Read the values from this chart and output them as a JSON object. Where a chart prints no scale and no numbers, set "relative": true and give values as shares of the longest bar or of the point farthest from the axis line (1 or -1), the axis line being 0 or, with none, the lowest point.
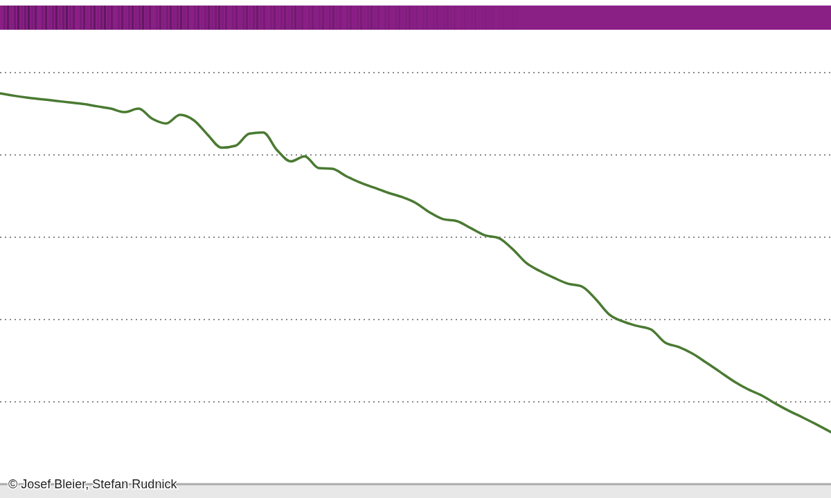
{
  "chart_data": {
    "type": "line",
    "relative": true,
    "grid": "y",
    "categories": [
      null,
      null,
      null,
      null,
      null,
      null,
      null,
      null,
      null,
      null,
      null,
      null,
      null,
      null,
      null,
      null,
      null,
      null,
      null,
      null,
      null,
      null,
      null,
      null,
      null,
      null,
      null,
      null,
      null,
      null,
      null,
      null,
      null,
      null,
      null,
      null,
      null,
      null,
      null,
      null,
      null,
      null,
      null,
      null,
      null,
      null,
      null,
      null,
      null,
      null,
      null,
      null,
      null,
      null,
      null,
      null,
      null,
      null,
      null,
      null,
      null
    ],
    "series": [
      {
        "color": "#4a7a32",
        "values": [
          1.0,
          0.994,
          0.989,
          0.985,
          0.981,
          0.977,
          0.973,
          0.967,
          0.961,
          0.952,
          0.961,
          0.935,
          0.923,
          0.945,
          0.931,
          0.894,
          0.861,
          0.866,
          0.897,
          0.9,
          0.855,
          0.826,
          0.839,
          0.809,
          0.807,
          0.788,
          0.772,
          0.759,
          0.746,
          0.735,
          0.72,
          0.696,
          0.678,
          0.673,
          0.655,
          0.637,
          0.63,
          0.602,
          0.566,
          0.545,
          0.528,
          0.513,
          0.506,
          0.474,
          0.434,
          0.416,
          0.405,
          0.396,
          0.363,
          0.351,
          0.334,
          0.311,
          0.287,
          0.263,
          0.243,
          0.227,
          0.206,
          0.187,
          0.17,
          0.152,
          0.133
        ]
      }
    ],
    "annotations": [
      "© Josef Bleier, Stefan Rudnick"
    ]
  }
}
